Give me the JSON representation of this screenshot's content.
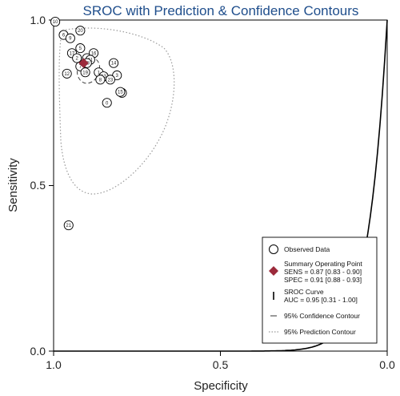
{
  "chart_data": {
    "type": "scatter",
    "title": "SROC with Prediction & Confidence Contours",
    "xlabel": "Specificity",
    "ylabel": "Sensitivity",
    "xlim": [
      1.0,
      0.0
    ],
    "ylim": [
      0.0,
      1.0
    ],
    "xticks": [
      "1.0",
      "0.5",
      "0.0"
    ],
    "yticks": [
      "0.0",
      "0.5",
      "1.0"
    ],
    "observed": [
      {
        "id": "10",
        "spec": 0.995,
        "sens": 0.995
      },
      {
        "id": "20",
        "spec": 0.92,
        "sens": 0.968
      },
      {
        "id": "6",
        "spec": 0.97,
        "sens": 0.955
      },
      {
        "id": "9",
        "spec": 0.95,
        "sens": 0.945
      },
      {
        "id": "5",
        "spec": 0.92,
        "sens": 0.915
      },
      {
        "id": "17",
        "spec": 0.945,
        "sens": 0.9
      },
      {
        "id": "2",
        "spec": 0.93,
        "sens": 0.885
      },
      {
        "id": "16",
        "spec": 0.88,
        "sens": 0.9
      },
      {
        "id": "4",
        "spec": 0.9,
        "sens": 0.885
      },
      {
        "id": "11",
        "spec": 0.89,
        "sens": 0.88
      },
      {
        "id": "14",
        "spec": 0.82,
        "sens": 0.87
      },
      {
        "id": "18",
        "spec": 0.9,
        "sens": 0.87
      },
      {
        "id": "7",
        "spec": 0.92,
        "sens": 0.86
      },
      {
        "id": "12",
        "spec": 0.96,
        "sens": 0.838
      },
      {
        "id": "19",
        "spec": 0.905,
        "sens": 0.842
      },
      {
        "id": "1",
        "spec": 0.865,
        "sens": 0.842
      },
      {
        "id": "13",
        "spec": 0.85,
        "sens": 0.83
      },
      {
        "id": "3",
        "spec": 0.81,
        "sens": 0.833
      },
      {
        "id": "8",
        "spec": 0.86,
        "sens": 0.82
      },
      {
        "id": "23",
        "spec": 0.83,
        "sens": 0.82
      },
      {
        "id": "22",
        "spec": 0.795,
        "sens": 0.78
      },
      {
        "id": "15",
        "spec": 0.8,
        "sens": 0.783
      },
      {
        "id": "0",
        "spec": 0.84,
        "sens": 0.75
      },
      {
        "id": "21",
        "spec": 0.955,
        "sens": 0.38
      }
    ],
    "summary_point": {
      "spec": 0.91,
      "sens": 0.87
    },
    "auc": 0.95,
    "legend": {
      "position": "bottom-right",
      "items": [
        {
          "symbol": "circle",
          "label": "Observed Data"
        },
        {
          "symbol": "diamond",
          "label": "Summary Operating Point",
          "lines": [
            "SENS = 0.87 [0.83 - 0.90]",
            "SPEC = 0.91 [0.88 - 0.93]"
          ]
        },
        {
          "symbol": "line",
          "label": "SROC Curve",
          "lines": [
            "AUC = 0.95 [0.31 - 1.00]"
          ]
        },
        {
          "symbol": "dash",
          "label": "95% Confidence Contour"
        },
        {
          "symbol": "dot",
          "label": "95% Prediction Contour"
        }
      ]
    },
    "colors": {
      "summary": "#9c2a3b",
      "title": "#1f4e8c",
      "curve": "#000000",
      "prediction": "#9a9a9a"
    }
  }
}
